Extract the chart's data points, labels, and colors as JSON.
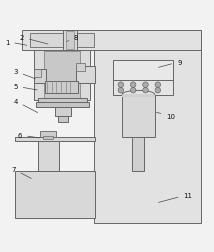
{
  "bg_color": "#f2f2f2",
  "line_color": "#666666",
  "figsize": [
    2.14,
    2.53
  ],
  "dpi": 100,
  "label_cfg": {
    "1": [
      0.03,
      0.895,
      0.135,
      0.875
    ],
    "2": [
      0.1,
      0.915,
      0.235,
      0.88
    ],
    "3": [
      0.07,
      0.755,
      0.175,
      0.715
    ],
    "4": [
      0.07,
      0.615,
      0.185,
      0.555
    ],
    "5": [
      0.07,
      0.685,
      0.185,
      0.665
    ],
    "6": [
      0.09,
      0.455,
      0.195,
      0.44
    ],
    "7": [
      0.06,
      0.295,
      0.155,
      0.245
    ],
    "8": [
      0.355,
      0.915,
      0.31,
      0.895
    ],
    "9": [
      0.84,
      0.8,
      0.73,
      0.77
    ],
    "10": [
      0.8,
      0.545,
      0.72,
      0.565
    ],
    "11": [
      0.88,
      0.175,
      0.73,
      0.135
    ]
  }
}
